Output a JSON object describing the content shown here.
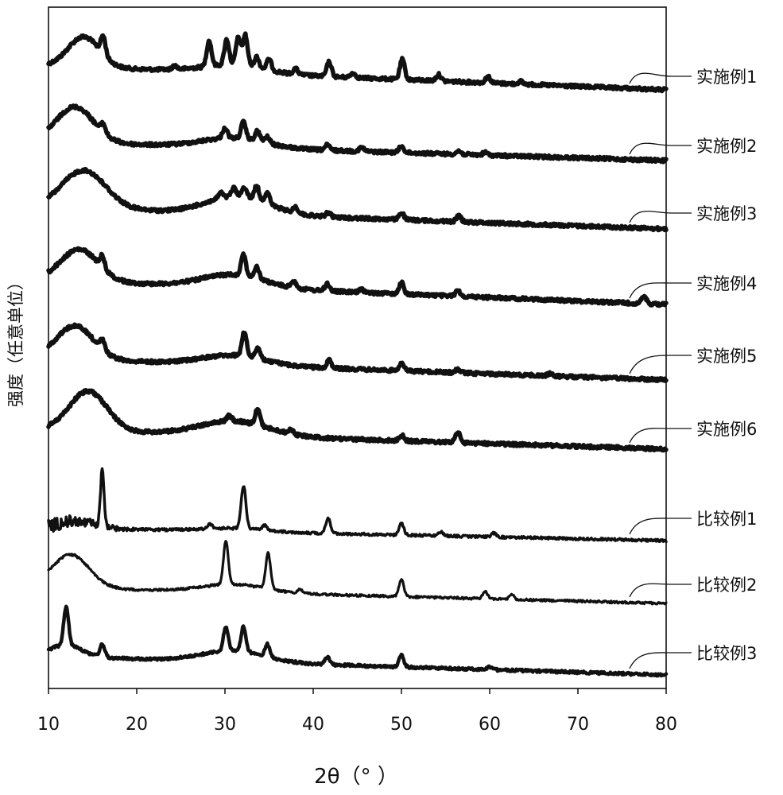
{
  "chart_data": {
    "type": "line",
    "xlabel": "2θ（°  ）",
    "ylabel": "强度（任意单位）",
    "xlim": [
      10,
      80
    ],
    "x_ticks": [
      10,
      20,
      30,
      40,
      50,
      60,
      70,
      80
    ],
    "grid": false,
    "legend": "labels at right end of each trace",
    "series": [
      {
        "name": "实施例1",
        "peaks": [
          [
            16.2,
            1.0
          ],
          [
            24.3,
            0.2
          ],
          [
            28.2,
            1.4
          ],
          [
            30.2,
            1.4
          ],
          [
            31.5,
            1.5
          ],
          [
            32.3,
            1.7
          ],
          [
            33.6,
            0.6
          ],
          [
            35.0,
            0.6
          ],
          [
            38.0,
            0.3
          ],
          [
            41.8,
            0.8
          ],
          [
            44.5,
            0.25
          ],
          [
            50.1,
            1.1
          ],
          [
            54.2,
            0.35
          ],
          [
            59.8,
            0.35
          ],
          [
            63.5,
            0.15
          ]
        ]
      },
      {
        "name": "实施例2",
        "peaks": [
          [
            16.2,
            0.7
          ],
          [
            30.0,
            0.8
          ],
          [
            32.1,
            1.3
          ],
          [
            33.7,
            0.8
          ],
          [
            34.8,
            0.5
          ],
          [
            41.6,
            0.4
          ],
          [
            45.5,
            0.3
          ],
          [
            50.0,
            0.5
          ],
          [
            56.5,
            0.25
          ],
          [
            59.5,
            0.2
          ]
        ]
      },
      {
        "name": "实施例3",
        "peaks": [
          [
            29.5,
            0.4
          ],
          [
            31.0,
            0.6
          ],
          [
            32.2,
            0.7
          ],
          [
            33.6,
            1.0
          ],
          [
            34.8,
            0.8
          ],
          [
            38.0,
            0.4
          ],
          [
            41.7,
            0.3
          ],
          [
            50.0,
            0.5
          ],
          [
            56.5,
            0.4
          ]
        ]
      },
      {
        "name": "实施例4",
        "peaks": [
          [
            16.1,
            0.8
          ],
          [
            32.1,
            1.5
          ],
          [
            33.6,
            0.8
          ],
          [
            37.8,
            0.5
          ],
          [
            41.6,
            0.5
          ],
          [
            45.5,
            0.2
          ],
          [
            50.0,
            0.8
          ],
          [
            56.4,
            0.4
          ],
          [
            77.5,
            0.5
          ]
        ]
      },
      {
        "name": "实施例5",
        "peaks": [
          [
            16.1,
            0.7
          ],
          [
            32.2,
            1.8
          ],
          [
            33.7,
            0.8
          ],
          [
            41.8,
            0.6
          ],
          [
            50.0,
            0.6
          ],
          [
            56.4,
            0.25
          ],
          [
            66.8,
            0.15
          ]
        ]
      },
      {
        "name": "实施例6",
        "peaks": [
          [
            30.5,
            0.4
          ],
          [
            33.7,
            1.1
          ],
          [
            37.5,
            0.3
          ],
          [
            50.0,
            0.4
          ],
          [
            56.4,
            0.7
          ]
        ]
      },
      {
        "name": "比较例1",
        "peaks": [
          [
            16.1,
            6.0
          ],
          [
            28.3,
            0.5
          ],
          [
            32.1,
            4.5
          ],
          [
            34.5,
            0.5
          ],
          [
            41.7,
            1.6
          ],
          [
            50.0,
            1.2
          ],
          [
            54.5,
            0.4
          ],
          [
            60.5,
            0.4
          ]
        ]
      },
      {
        "name": "比较例2",
        "peaks": [
          [
            30.1,
            3.6
          ],
          [
            34.9,
            3.0
          ],
          [
            38.5,
            0.3
          ],
          [
            50.0,
            1.4
          ],
          [
            59.5,
            0.6
          ],
          [
            62.5,
            0.4
          ]
        ]
      },
      {
        "name": "比较例3",
        "peaks": [
          [
            12.0,
            4.0
          ],
          [
            16.1,
            1.4
          ],
          [
            30.1,
            2.5
          ],
          [
            32.1,
            2.6
          ],
          [
            34.8,
            1.3
          ],
          [
            41.6,
            0.8
          ],
          [
            50.0,
            1.2
          ],
          [
            60.0,
            0.3
          ]
        ]
      }
    ]
  }
}
